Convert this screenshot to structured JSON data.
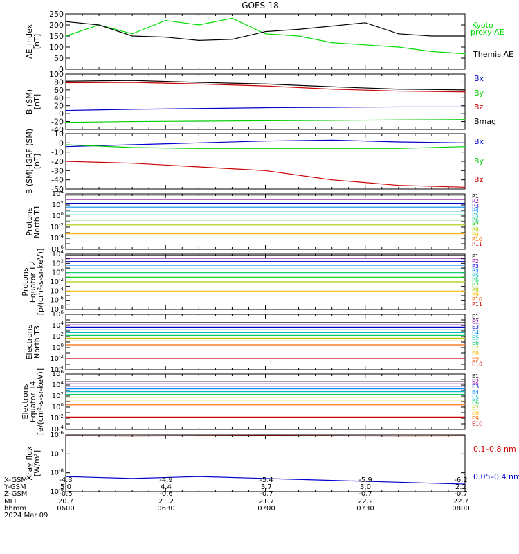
{
  "title": "GOES-18",
  "date_label": "2024 Mar 09",
  "footer": {
    "rows": [
      {
        "label": "X-GSM",
        "values": [
          "-4.3",
          "-4.9",
          "-5.4",
          "-5.9",
          "-6.2"
        ]
      },
      {
        "label": "Y-GSM",
        "values": [
          "5.0",
          "4.4",
          "3.7",
          "3.0",
          "2.2"
        ]
      },
      {
        "label": "Z-GSM",
        "values": [
          "-0.5",
          "-0.6",
          "-0.7",
          "-0.7",
          "-0.7"
        ]
      },
      {
        "label": "MLT",
        "values": [
          "20.7",
          "21.2",
          "21.7",
          "22.2",
          "22.7"
        ]
      },
      {
        "label": "hhmm",
        "values": [
          "0600",
          "0630",
          "0700",
          "0730",
          "0800"
        ]
      }
    ]
  },
  "chart_data": [
    {
      "id": "ae",
      "type": "line",
      "ylabel": [
        "AE_index",
        "[nT]"
      ],
      "ylim": [
        0,
        250
      ],
      "yticks": [
        0,
        50,
        100,
        150,
        200,
        250
      ],
      "ytick_labels": [
        "0",
        "50",
        "100",
        "150",
        "200",
        "250"
      ],
      "x": [
        0,
        10,
        20,
        30,
        40,
        50,
        60,
        70,
        80,
        90,
        100,
        110,
        120
      ],
      "series": [
        {
          "name": "Kyoto proxy AE",
          "color": "#00dd00",
          "values": [
            150,
            200,
            160,
            220,
            200,
            230,
            160,
            150,
            120,
            110,
            100,
            80,
            70
          ]
        },
        {
          "name": "Themis AE",
          "color": "#000000",
          "values": [
            215,
            200,
            150,
            145,
            130,
            135,
            170,
            180,
            195,
            210,
            160,
            150,
            150
          ]
        }
      ]
    },
    {
      "id": "bsm",
      "type": "line",
      "ylabel": [
        "B (SM)",
        "[nT]"
      ],
      "ylim": [
        -40,
        100
      ],
      "yticks": [
        -40,
        -20,
        0,
        20,
        40,
        60,
        80,
        100
      ],
      "ytick_labels": [
        "-40",
        "-20",
        "0",
        "20",
        "40",
        "60",
        "80",
        "100"
      ],
      "x": [
        0,
        20,
        40,
        60,
        80,
        100,
        120
      ],
      "series": [
        {
          "name": "Bx",
          "color": "#0000cc",
          "values": [
            8,
            11,
            13,
            15,
            16,
            17,
            17
          ]
        },
        {
          "name": "By",
          "color": "#00cc00",
          "values": [
            -22,
            -20,
            -19,
            -18,
            -17,
            -16,
            -15
          ]
        },
        {
          "name": "Bz",
          "color": "#cc0000",
          "values": [
            78,
            79,
            75,
            70,
            62,
            57,
            55
          ]
        },
        {
          "name": "Bmag",
          "color": "#000000",
          "values": [
            82,
            84,
            79,
            75,
            68,
            62,
            60
          ]
        }
      ]
    },
    {
      "id": "bdiff",
      "type": "line",
      "ylabel": [
        "B (SM)-IGRF (SM)",
        "[nT]"
      ],
      "ylim": [
        -50,
        10
      ],
      "yticks": [
        -50,
        -40,
        -30,
        -20,
        -10,
        0,
        10
      ],
      "ytick_labels": [
        "-50",
        "-40",
        "-30",
        "-20",
        "-10",
        "0",
        "10"
      ],
      "x": [
        0,
        20,
        40,
        60,
        80,
        100,
        120
      ],
      "series": [
        {
          "name": "Bx",
          "color": "#0000cc",
          "values": [
            -4,
            -2,
            0,
            2,
            3,
            1,
            0
          ]
        },
        {
          "name": "By",
          "color": "#00cc00",
          "values": [
            -2,
            -5,
            -6,
            -6,
            -6,
            -6,
            -4
          ]
        },
        {
          "name": "Bz",
          "color": "#cc0000",
          "values": [
            -20,
            -22,
            -26,
            -30,
            -40,
            -46,
            -48
          ]
        }
      ]
    },
    {
      "id": "prot_north",
      "type": "line",
      "log": true,
      "ylabel": [
        "Protons",
        "North T1"
      ],
      "ylim_exp": [
        -6,
        4
      ],
      "tick_exps": [
        4,
        2,
        0,
        -2,
        -4,
        -6
      ],
      "legend": [
        "P1",
        "P2",
        "P3",
        "P4",
        "P5",
        "P6",
        "P7",
        "P8",
        "P9",
        "P10",
        "P11"
      ],
      "colors": [
        "#000000",
        "#8800aa",
        "#0000cc",
        "#0088ff",
        "#00bbbb",
        "#00cc66",
        "#00cc00",
        "#aacc00",
        "#ffbb00",
        "#ff6600",
        "#cc0000"
      ],
      "levels": [
        3.8,
        3.0,
        2.3,
        1.6,
        0.9,
        0.2,
        -0.7,
        -1.6,
        -3.2,
        null,
        null
      ]
    },
    {
      "id": "prot_equator",
      "type": "line",
      "log": true,
      "ylabel": [
        "Protons",
        "Equator T2",
        "[p/(cm²-s-sr-keV)]"
      ],
      "ylim_exp": [
        -8,
        4
      ],
      "tick_exps": [
        4,
        2,
        0,
        -2,
        -4,
        -6,
        -8
      ],
      "legend": [
        "P1",
        "P2",
        "P3",
        "P4",
        "P5",
        "P6",
        "P7",
        "P8",
        "P9",
        "P10",
        "P11"
      ],
      "colors": [
        "#000000",
        "#8800aa",
        "#0000cc",
        "#0088ff",
        "#00bbbb",
        "#00cc66",
        "#00cc00",
        "#aacc00",
        "#ffbb00",
        "#ff6600",
        "#cc0000"
      ],
      "levels": [
        3.7,
        3.1,
        2.4,
        1.6,
        0.8,
        0.0,
        -1.0,
        -2.0,
        -4.0,
        null,
        null
      ]
    },
    {
      "id": "elec_north",
      "type": "line",
      "log": true,
      "ylabel": [
        "Electrons",
        "North T3"
      ],
      "ylim_exp": [
        -4,
        6
      ],
      "tick_exps": [
        6,
        4,
        2,
        0,
        -2,
        -4
      ],
      "legend": [
        "E1",
        "E2",
        "E3",
        "E4",
        "E5",
        "E6",
        "E7",
        "E8",
        "E9",
        "E10"
      ],
      "colors": [
        "#000000",
        "#8800aa",
        "#0000cc",
        "#0088ff",
        "#00bbbb",
        "#00cc66",
        "#aacc00",
        "#ffbb00",
        "#ff6600",
        "#cc0000"
      ],
      "levels": [
        4.5,
        4.1,
        3.7,
        3.2,
        2.7,
        2.2,
        1.7,
        1.2,
        0.5,
        -2.0
      ]
    },
    {
      "id": "elec_equator",
      "type": "line",
      "log": true,
      "ylabel": [
        "Electrons",
        "Equator T4",
        "[e/(cm²-s-sr-keV)]"
      ],
      "ylim_exp": [
        -4,
        6
      ],
      "tick_exps": [
        6,
        4,
        2,
        0,
        -2,
        -4
      ],
      "legend": [
        "E1",
        "E2",
        "E3",
        "E4",
        "E5",
        "E6",
        "E7",
        "E8",
        "E9",
        "E10"
      ],
      "colors": [
        "#000000",
        "#8800aa",
        "#0000cc",
        "#0088ff",
        "#00bbbb",
        "#00cc66",
        "#aacc00",
        "#ffbb00",
        "#ff6600",
        "#cc0000"
      ],
      "levels": [
        4.6,
        4.2,
        3.8,
        3.3,
        2.8,
        2.3,
        1.8,
        1.3,
        0.4,
        -1.8
      ]
    },
    {
      "id": "xray",
      "type": "line",
      "log": true,
      "ylabel": [
        "Xray flux",
        "[W/m²]"
      ],
      "ylim_exp": [
        -9,
        -6
      ],
      "tick_exps": [
        -6,
        -7,
        -8,
        -9
      ],
      "series": [
        {
          "name": "0.1–0.8 nm",
          "color": "#cc0000",
          "values_exp": [
            -6.05,
            -6.06,
            -6.05,
            -6.04,
            -6.05,
            -6.06,
            -6.05
          ]
        },
        {
          "name": "0.05–0.4 nm",
          "color": "#0000cc",
          "values_exp": [
            -8.2,
            -8.3,
            -8.2,
            -8.3,
            -8.4,
            -8.5,
            -8.6
          ]
        }
      ]
    }
  ]
}
